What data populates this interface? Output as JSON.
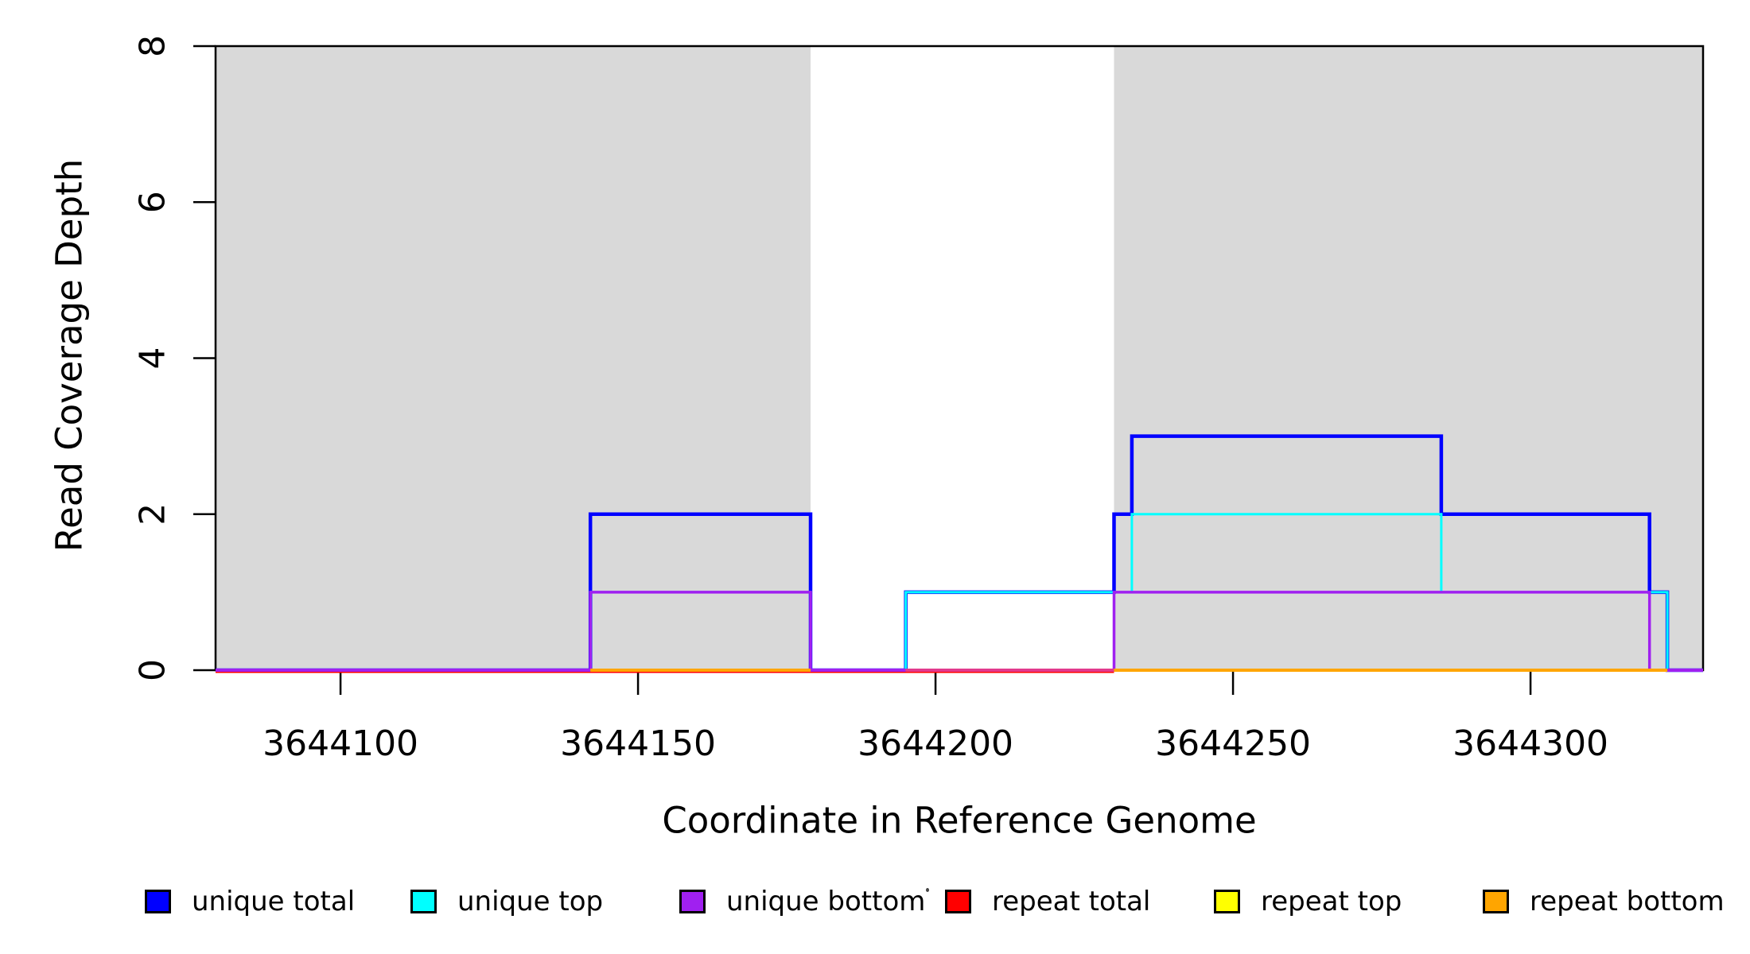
{
  "figure": {
    "background": "#FFFFFF",
    "frame_color": "#000000",
    "shading_color": "#D9D9D9",
    "text_color": "#000000"
  },
  "chart_data": {
    "type": "line",
    "subtype": "step-coverage",
    "title": "",
    "xlabel": "Coordinate in Reference Genome",
    "ylabel": "Read Coverage Depth",
    "xlim": [
      3644079,
      3644329
    ],
    "ylim": [
      0,
      8
    ],
    "x_ticks": [
      "3644100",
      "3644150",
      "3644200",
      "3644250",
      "3644300"
    ],
    "x_tick_values": [
      3644100,
      3644150,
      3644200,
      3644250,
      3644300
    ],
    "y_ticks": [
      "0",
      "2",
      "4",
      "6",
      "8"
    ],
    "y_tick_values": [
      0,
      2,
      4,
      6,
      8
    ],
    "grid": false,
    "legend_position": "bottom",
    "shaded_regions": {
      "color": "#D9D9D9",
      "ranges": [
        [
          3644079,
          3644179
        ],
        [
          3644230,
          3644329
        ]
      ]
    },
    "series": [
      {
        "name": "unique total",
        "color": "#0000FF",
        "line_width": 4.5,
        "steps": [
          [
            3644079,
            0
          ],
          [
            3644142,
            2
          ],
          [
            3644179,
            0
          ],
          [
            3644195,
            1
          ],
          [
            3644230,
            2
          ],
          [
            3644233,
            3
          ],
          [
            3644285,
            2
          ],
          [
            3644320,
            1
          ],
          [
            3644323,
            0
          ],
          [
            3644329,
            0
          ]
        ]
      },
      {
        "name": "unique top",
        "color": "#00FFFF",
        "line_width": 3,
        "steps": [
          [
            3644079,
            0
          ],
          [
            3644142,
            1
          ],
          [
            3644179,
            0
          ],
          [
            3644195,
            1
          ],
          [
            3644233,
            2
          ],
          [
            3644285,
            1
          ],
          [
            3644323,
            0
          ],
          [
            3644329,
            0
          ]
        ]
      },
      {
        "name": "unique bottom",
        "color": "#A020F0",
        "line_width": 3.5,
        "steps": [
          [
            3644079,
            0
          ],
          [
            3644142,
            1
          ],
          [
            3644179,
            0
          ],
          [
            3644230,
            1
          ],
          [
            3644320,
            0
          ],
          [
            3644329,
            0
          ]
        ]
      },
      {
        "name": "repeat total",
        "color": "#FF0000",
        "line_width": 3,
        "steps": [
          [
            3644079,
            0
          ],
          [
            3644329,
            0
          ]
        ]
      },
      {
        "name": "repeat top",
        "color": "#FFFF00",
        "line_width": 3,
        "steps": [
          [
            3644079,
            0
          ],
          [
            3644329,
            0
          ]
        ]
      },
      {
        "name": "repeat bottom",
        "color": "#FFA500",
        "line_width": 3,
        "steps": [
          [
            3644079,
            0
          ],
          [
            3644329,
            0
          ]
        ]
      }
    ],
    "zero_line_segments": [
      {
        "from": 3644079,
        "to": 3644142,
        "color": "#A020F0"
      },
      {
        "from": 3644142,
        "to": 3644179,
        "color": "#FFA500"
      },
      {
        "from": 3644179,
        "to": 3644195,
        "color": "#A020F0"
      },
      {
        "from": 3644195,
        "to": 3644230,
        "color": "#E23A8E"
      },
      {
        "from": 3644230,
        "to": 3644323,
        "color": "#FFA500"
      },
      {
        "from": 3644323,
        "to": 3644329,
        "color": "#A020F0"
      }
    ],
    "zero_fringe": {
      "from": 3644079,
      "to": 3644230,
      "color": "#FF0000"
    }
  },
  "legend": {
    "items": [
      {
        "label": "unique total",
        "color": "#0000FF"
      },
      {
        "label": "unique top",
        "color": "#00FFFF"
      },
      {
        "label": "unique bottom",
        "color": "#A020F0"
      },
      {
        "label": "repeat total",
        "color": "#FF0000"
      },
      {
        "label": "repeat top",
        "color": "#FFFF00"
      },
      {
        "label": "repeat bottom",
        "color": "#FFA500"
      }
    ]
  }
}
